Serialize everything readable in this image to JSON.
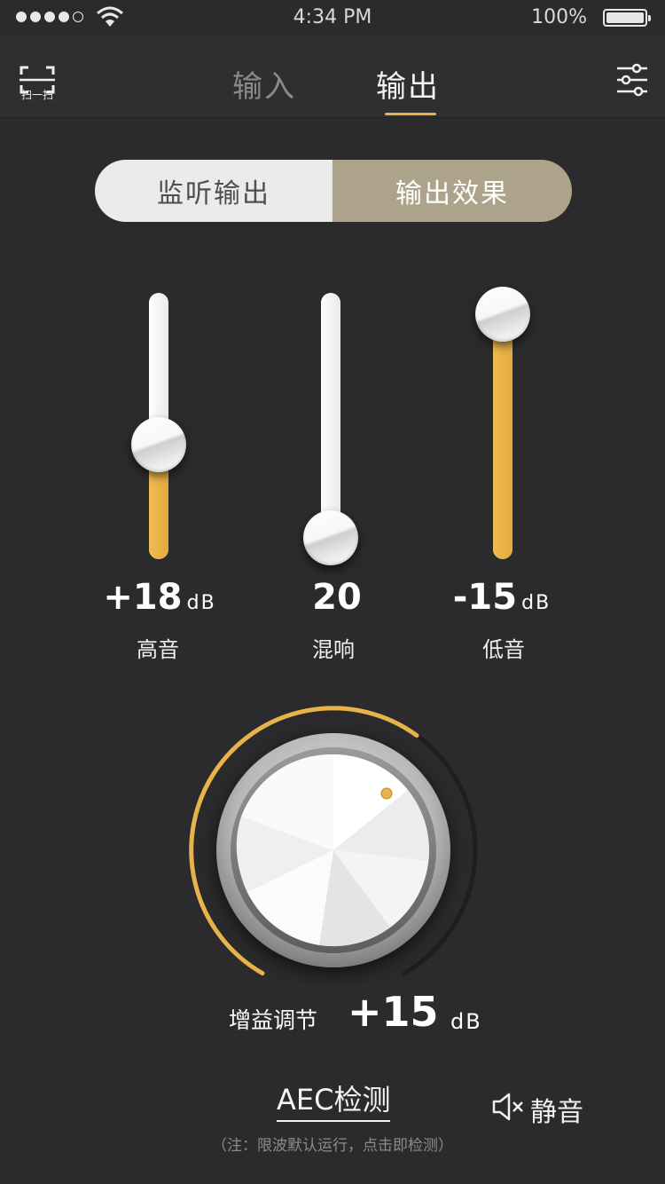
{
  "status_bar": {
    "time": "4:34 PM",
    "battery": "100%",
    "signal_dots": 5,
    "signal_filled": 4
  },
  "header": {
    "scan_label": "扫一扫",
    "tabs": [
      {
        "label": "输入",
        "active": false
      },
      {
        "label": "输出",
        "active": true
      }
    ]
  },
  "segment": {
    "left": "监听输出",
    "right": "输出效果",
    "selected": "输出效果"
  },
  "sliders": [
    {
      "value": "+18",
      "unit": "dB",
      "label": "高音",
      "level": 0.43
    },
    {
      "value": "20",
      "unit": "",
      "label": "混响",
      "level": 0.08
    },
    {
      "value": "-15",
      "unit": "dB",
      "label": "低音",
      "level": 0.92
    }
  ],
  "gain": {
    "label": "增益调节",
    "value": "+15",
    "unit": "dB",
    "arc_fraction": 0.62
  },
  "bottom": {
    "aec": "AEC检测",
    "mute": "静音",
    "note": "（注：限波默认运行，点击即检测）"
  },
  "colors": {
    "accent": "#e8b44a",
    "background": "#2b2b2d",
    "segment_active": "#ada38b"
  },
  "icons": [
    "wifi-icon",
    "battery-icon",
    "scan-icon",
    "settings-sliders-icon",
    "volume-mute-icon"
  ]
}
